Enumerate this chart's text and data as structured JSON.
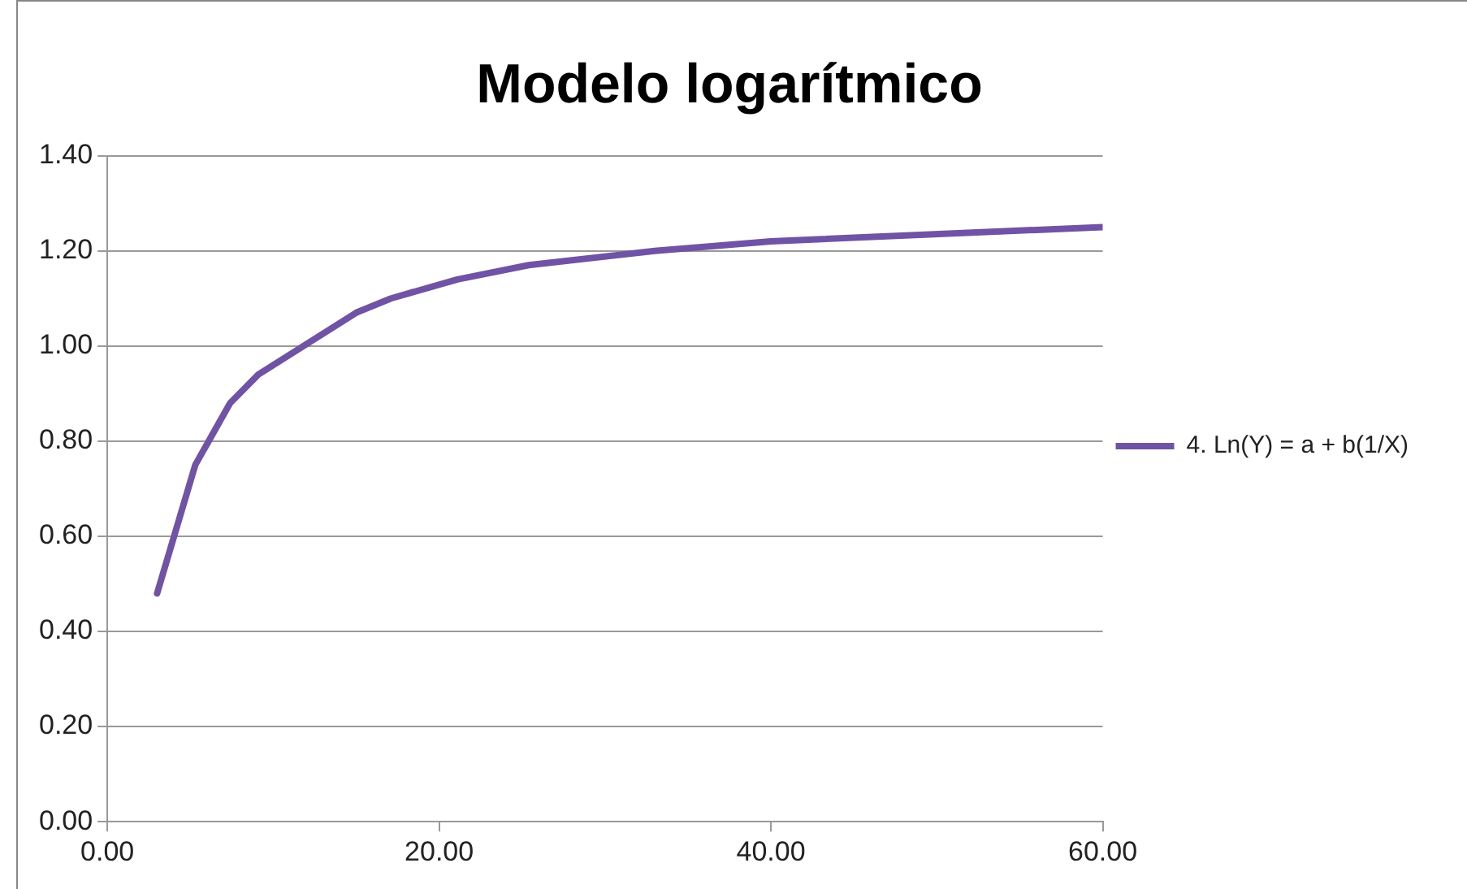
{
  "chart_data": {
    "type": "line",
    "title": "Modelo logarítmico",
    "x": [
      3,
      5.3,
      7.4,
      9.1,
      15,
      17.1,
      21.1,
      25.4,
      33,
      40,
      60
    ],
    "series": [
      {
        "name": "4. Ln(Y) = a + b(1/X)",
        "color": "#7153a5",
        "values": [
          0.48,
          0.75,
          0.88,
          0.94,
          1.07,
          1.1,
          1.14,
          1.17,
          1.2,
          1.22,
          1.25
        ]
      }
    ],
    "xlim": [
      0,
      60
    ],
    "xticks": [
      {
        "value": 0,
        "label": "0.00"
      },
      {
        "value": 20,
        "label": "20.00"
      },
      {
        "value": 40,
        "label": "40.00"
      },
      {
        "value": 60,
        "label": "60.00"
      }
    ],
    "ylim": [
      0,
      1.4
    ],
    "yticks": [
      {
        "value": 0,
        "label": "0.00"
      },
      {
        "value": 0.2,
        "label": "0.20"
      },
      {
        "value": 0.4,
        "label": "0.40"
      },
      {
        "value": 0.6,
        "label": "0.60"
      },
      {
        "value": 0.8,
        "label": "0.80"
      },
      {
        "value": 1,
        "label": "1.00"
      },
      {
        "value": 1.2,
        "label": "1.20"
      },
      {
        "value": 1.4,
        "label": "1.40"
      }
    ],
    "grid": "y",
    "legend": "right",
    "marker": "none",
    "line_style": "solid"
  }
}
